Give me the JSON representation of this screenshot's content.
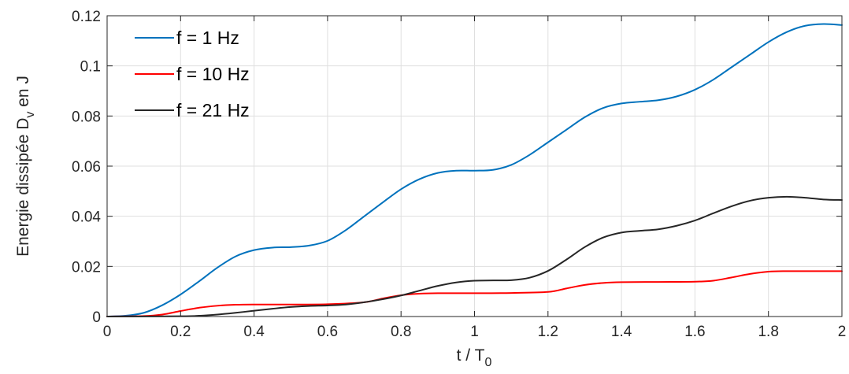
{
  "chart_data": {
    "type": "line",
    "xlabel_main": "t / T",
    "xlabel_sub": "0",
    "ylabel_main": "Energie dissipée D",
    "ylabel_sub": "v",
    "ylabel_tail": " en J",
    "xlim": [
      0,
      2
    ],
    "ylim": [
      0,
      0.12
    ],
    "xticks": [
      0,
      0.2,
      0.4,
      0.6,
      0.8,
      1,
      1.2,
      1.4,
      1.6,
      1.8,
      2
    ],
    "xtick_labels": [
      "0",
      "0.2",
      "0.4",
      "0.6",
      "0.8",
      "1",
      "1.2",
      "1.4",
      "1.6",
      "1.8",
      "2"
    ],
    "yticks": [
      0,
      0.02,
      0.04,
      0.06,
      0.08,
      0.1,
      0.12
    ],
    "ytick_labels": [
      "0",
      "0.02",
      "0.04",
      "0.06",
      "0.08",
      "0.1",
      "0.12"
    ],
    "grid": true,
    "legend_position": "top-left",
    "series": [
      {
        "name": "f = 1 Hz",
        "color": "#0072BD",
        "x": [
          0,
          0.05,
          0.1,
          0.15,
          0.2,
          0.25,
          0.3,
          0.35,
          0.4,
          0.45,
          0.5,
          0.55,
          0.6,
          0.65,
          0.7,
          0.75,
          0.8,
          0.85,
          0.9,
          0.95,
          1.0,
          1.05,
          1.1,
          1.15,
          1.2,
          1.25,
          1.3,
          1.35,
          1.4,
          1.45,
          1.5,
          1.55,
          1.6,
          1.65,
          1.7,
          1.75,
          1.8,
          1.85,
          1.9,
          1.95,
          2.0
        ],
        "y": [
          0,
          0.0003,
          0.0015,
          0.0045,
          0.0088,
          0.014,
          0.0195,
          0.024,
          0.0265,
          0.0275,
          0.0277,
          0.0283,
          0.0302,
          0.0345,
          0.04,
          0.0455,
          0.0508,
          0.0548,
          0.0573,
          0.0582,
          0.0582,
          0.0585,
          0.0605,
          0.0645,
          0.0695,
          0.0745,
          0.0795,
          0.0832,
          0.085,
          0.0857,
          0.0863,
          0.0878,
          0.0905,
          0.0945,
          0.0995,
          0.1045,
          0.1095,
          0.1135,
          0.116,
          0.1167,
          0.1163
        ]
      },
      {
        "name": "f = 10 Hz",
        "color": "#FF0000",
        "x": [
          0,
          0.1,
          0.15,
          0.2,
          0.25,
          0.3,
          0.35,
          0.4,
          0.5,
          0.6,
          0.7,
          0.75,
          0.8,
          0.85,
          0.9,
          1.0,
          1.1,
          1.2,
          1.25,
          1.3,
          1.35,
          1.4,
          1.5,
          1.6,
          1.65,
          1.7,
          1.75,
          1.8,
          1.85,
          1.9,
          2.0
        ],
        "y": [
          0,
          0.0002,
          0.0008,
          0.0022,
          0.0035,
          0.0043,
          0.0047,
          0.0048,
          0.0048,
          0.0049,
          0.0057,
          0.0072,
          0.0085,
          0.0091,
          0.0093,
          0.0093,
          0.0094,
          0.0098,
          0.0112,
          0.0126,
          0.0134,
          0.0137,
          0.0138,
          0.0139,
          0.0143,
          0.0156,
          0.017,
          0.0179,
          0.0181,
          0.0181,
          0.0181
        ]
      },
      {
        "name": "f = 21 Hz",
        "color": "#262626",
        "x": [
          0,
          0.2,
          0.25,
          0.3,
          0.35,
          0.4,
          0.45,
          0.5,
          0.55,
          0.6,
          0.65,
          0.7,
          0.75,
          0.8,
          0.85,
          0.9,
          0.95,
          1.0,
          1.05,
          1.1,
          1.15,
          1.2,
          1.25,
          1.3,
          1.35,
          1.4,
          1.45,
          1.5,
          1.55,
          1.6,
          1.65,
          1.7,
          1.75,
          1.8,
          1.85,
          1.9,
          1.95,
          2.0
        ],
        "y": [
          0,
          0.0001,
          0.0003,
          0.0008,
          0.0015,
          0.0023,
          0.0031,
          0.0038,
          0.0042,
          0.0044,
          0.0048,
          0.0057,
          0.0069,
          0.0084,
          0.0103,
          0.0122,
          0.0136,
          0.0143,
          0.0144,
          0.0145,
          0.0155,
          0.0182,
          0.0227,
          0.0277,
          0.0315,
          0.0335,
          0.0342,
          0.0348,
          0.0362,
          0.0383,
          0.0412,
          0.044,
          0.0462,
          0.0474,
          0.0478,
          0.0474,
          0.0467,
          0.0465
        ]
      }
    ]
  }
}
